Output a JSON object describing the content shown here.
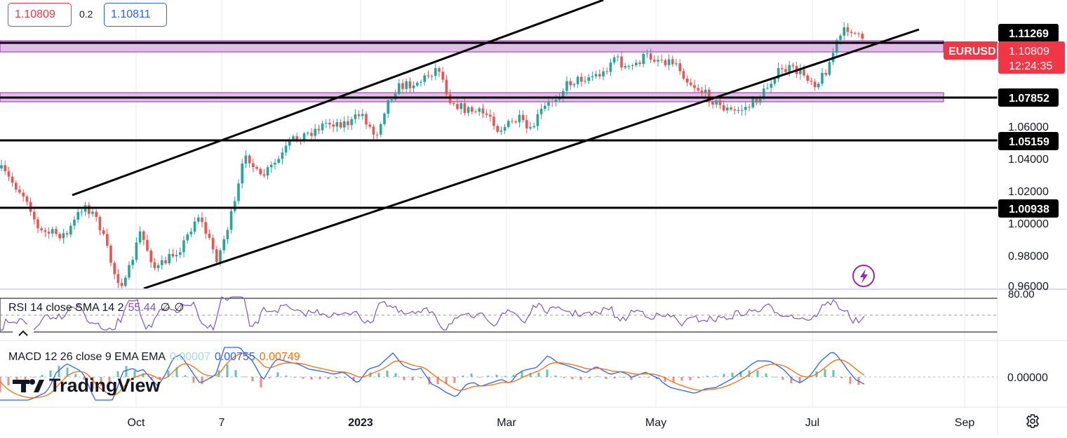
{
  "quote": {
    "bid": "1.10809",
    "spread": "0.2",
    "ask": "1.10811"
  },
  "price_axis": {
    "ticks": [
      "1.06000",
      "1.04000",
      "1.02000",
      "1.00000",
      "0.98000",
      "0.96000"
    ],
    "levels": [
      "1.11269",
      "1.07852",
      "1.05159",
      "1.00938"
    ],
    "symbol": "EURUSD",
    "last_price": "1.10809",
    "countdown": "12:24:35"
  },
  "time_axis": {
    "labels": [
      "Oct",
      "7",
      "2023",
      "Mar",
      "May",
      "Jul",
      "Sep"
    ]
  },
  "rsi": {
    "name": "RSI 14 close SMA 14 2",
    "value": "55.44",
    "na1": "∅",
    "na2": "∅",
    "level_label": "80.00"
  },
  "macd": {
    "name": "MACD 12 26 close 9 EMA EMA",
    "hist": "0.00007",
    "macd": "0.00755",
    "signal": "0.00749",
    "zero_label": "0.00000"
  },
  "brand": {
    "name": "TradingView"
  },
  "colors": {
    "up": "#26a69a",
    "down": "#ef5350",
    "bid": "#f23645",
    "ask": "#2962ff",
    "rsi": "#7e57c2",
    "macd": "#2962ff",
    "signal": "#ff6d00",
    "zone": "#e1bee7"
  },
  "icons": {
    "lightning": "lightning-icon",
    "settings": "gear-icon",
    "collapse": "chevron-up-icon"
  }
}
